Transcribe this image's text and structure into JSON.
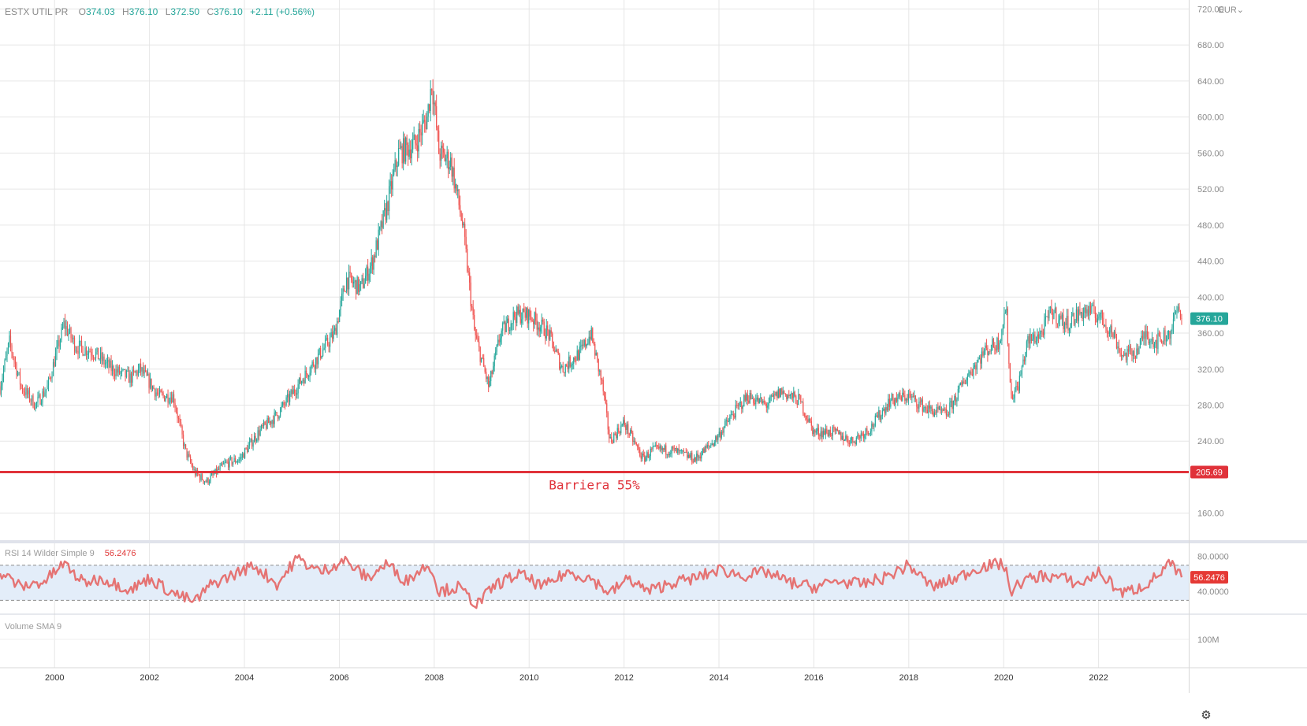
{
  "symbol": "ESTX UTIL PR",
  "ohlc": {
    "open_label": "O",
    "open": "374.03",
    "high_label": "H",
    "high": "376.10",
    "low_label": "L",
    "low": "372.50",
    "close_label": "C",
    "close": "376.10",
    "change": "+2.11 (+0.56%)"
  },
  "currency": "EUR",
  "last_price_label": "376.10",
  "barrier": {
    "value": 205.69,
    "price_label": "205.69",
    "label": "Barriera 55%"
  },
  "rsi_indicator": {
    "label": "RSI 14 Wilder Simple 9",
    "value": "56.2476",
    "ticks": [
      "80.0000",
      "40.0000"
    ]
  },
  "volume_indicator": {
    "label": "Volume SMA 9",
    "tick": "100M"
  },
  "icons": {
    "settings": "gear-icon"
  },
  "colors": {
    "up": "#26a69a",
    "down": "#ef5350",
    "barrier": "#e0323a",
    "rsi_line": "#e57373",
    "rsi_band": "#e3edf9",
    "last_price": "#26a69a"
  },
  "chart_data": [
    {
      "type": "line",
      "title": "ESTX UTIL PR",
      "y_unit": "EUR",
      "x_range": [
        1998.85,
        2023.9
      ],
      "ylim": [
        130,
        730
      ],
      "x_ticks": [
        "2000",
        "2002",
        "2004",
        "2006",
        "2008",
        "2010",
        "2012",
        "2014",
        "2016",
        "2018",
        "2020",
        "2022"
      ],
      "y_ticks": [
        "720.00",
        "680.00",
        "640.00",
        "600.00",
        "560.00",
        "520.00",
        "480.00",
        "440.00",
        "400.00",
        "360.00",
        "320.00",
        "280.00",
        "240.00",
        "160.00"
      ],
      "grid": true,
      "series": [
        {
          "name": "ESTX UTIL PR",
          "x": [
            1998.85,
            1999.05,
            1999.3,
            1999.6,
            1999.85,
            2000.2,
            2000.45,
            2000.8,
            2001.2,
            2001.6,
            2001.8,
            2002.2,
            2002.5,
            2002.75,
            2002.95,
            2003.2,
            2003.6,
            2003.9,
            2004.3,
            2004.7,
            2005.1,
            2005.5,
            2005.9,
            2006.15,
            2006.45,
            2006.7,
            2007.0,
            2007.25,
            2007.6,
            2007.85,
            2007.95,
            2008.1,
            2008.35,
            2008.6,
            2008.85,
            2009.15,
            2009.4,
            2009.7,
            2010.0,
            2010.4,
            2010.7,
            2011.1,
            2011.3,
            2011.55,
            2011.7,
            2012.0,
            2012.4,
            2012.6,
            2013.0,
            2013.5,
            2013.9,
            2014.3,
            2014.6,
            2015.0,
            2015.3,
            2015.7,
            2016.0,
            2016.4,
            2016.8,
            2017.2,
            2017.6,
            2018.0,
            2018.4,
            2018.8,
            2019.2,
            2019.6,
            2019.9,
            2020.05,
            2020.15,
            2020.3,
            2020.5,
            2020.8,
            2021.0,
            2021.3,
            2021.7,
            2022.0,
            2022.3,
            2022.5,
            2022.8,
            2023.0,
            2023.2,
            2023.5,
            2023.65,
            2023.75
          ],
          "close": [
            300,
            350,
            300,
            280,
            300,
            370,
            345,
            340,
            320,
            310,
            320,
            290,
            290,
            230,
            205,
            195,
            215,
            220,
            250,
            270,
            300,
            330,
            360,
            420,
            410,
            440,
            500,
            560,
            570,
            600,
            640,
            560,
            550,
            480,
            360,
            300,
            360,
            380,
            380,
            360,
            320,
            340,
            360,
            300,
            240,
            260,
            220,
            230,
            230,
            220,
            240,
            270,
            290,
            280,
            295,
            285,
            250,
            250,
            240,
            255,
            285,
            290,
            275,
            270,
            310,
            340,
            350,
            390,
            290,
            300,
            350,
            360,
            385,
            370,
            385,
            380,
            360,
            335,
            340,
            360,
            350,
            360,
            385,
            376.1
          ]
        }
      ]
    },
    {
      "type": "line",
      "title": "RSI 14 Wilder Simple 9",
      "x_range": [
        1998.85,
        2023.9
      ],
      "ylim": [
        15,
        95
      ],
      "y_ticks": [
        "80.0000",
        "40.0000"
      ],
      "band": [
        70,
        30
      ],
      "current_value": 56.2476,
      "series": [
        {
          "name": "RSI 14 Wilder Simple 9",
          "x": [
            1998.85,
            1999.3,
            1999.8,
            2000.2,
            2000.6,
            2001.0,
            2001.6,
            2002.0,
            2002.5,
            2002.95,
            2003.3,
            2003.8,
            2004.2,
            2004.7,
            2005.1,
            2005.6,
            2006.1,
            2006.6,
            2007.0,
            2007.4,
            2007.9,
            2008.1,
            2008.5,
            2008.9,
            2009.3,
            2009.8,
            2010.3,
            2010.8,
            2011.3,
            2011.7,
            2012.1,
            2012.5,
            2013.0,
            2013.5,
            2014.0,
            2014.5,
            2015.0,
            2015.5,
            2016.0,
            2016.5,
            2017.0,
            2017.5,
            2018.0,
            2018.5,
            2019.0,
            2019.5,
            2020.0,
            2020.15,
            2020.4,
            2020.8,
            2021.2,
            2021.6,
            2022.0,
            2022.5,
            2022.9,
            2023.2,
            2023.5,
            2023.75
          ],
          "values": [
            62,
            45,
            52,
            72,
            50,
            55,
            42,
            55,
            38,
            28,
            48,
            60,
            70,
            48,
            78,
            62,
            76,
            55,
            72,
            52,
            72,
            40,
            45,
            25,
            48,
            60,
            45,
            62,
            55,
            38,
            55,
            40,
            50,
            55,
            65,
            58,
            62,
            50,
            45,
            52,
            48,
            56,
            70,
            45,
            55,
            68,
            72,
            40,
            52,
            58,
            56,
            48,
            62,
            38,
            45,
            56,
            72,
            56.2
          ]
        }
      ]
    }
  ]
}
